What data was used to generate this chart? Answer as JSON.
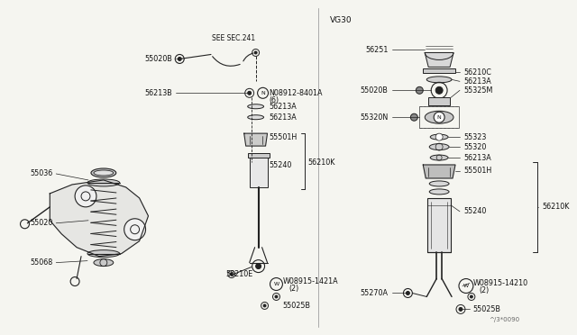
{
  "bg_color": "#f5f5f0",
  "line_color": "#222222",
  "text_color": "#111111",
  "fig_width": 6.4,
  "fig_height": 3.72,
  "dpi": 100,
  "vg30_label": "VG30",
  "see_sec": "SEE SEC.241",
  "watermark": "^/3*0090"
}
